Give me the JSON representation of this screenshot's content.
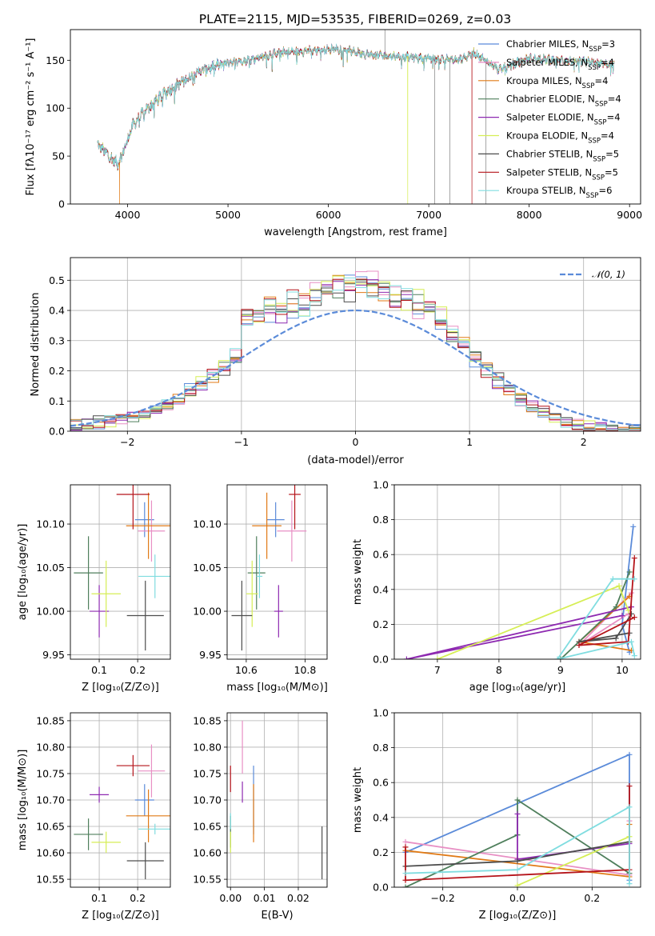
{
  "title": "PLATE=2115, MJD=53535, FIBERID=0269, z=0.03",
  "colors": {
    "s0": "#5b8bd9",
    "s1": "#e88fc4",
    "s2": "#e07a16",
    "s3": "#4f7f5c",
    "s4": "#8e2ab1",
    "s5": "#d6ee55",
    "s6": "#4d4d4d",
    "s7": "#b5141a",
    "s8": "#80dde0",
    "data": "#7f7f7f"
  },
  "chart_data": [
    {
      "id": "spectrum",
      "type": "line",
      "xlabel": "wavelength [Angstrom, rest frame]",
      "ylabel": "Flux [f_λ 10^-17 erg cm^-2 s^-1 A^-1]",
      "xlim": [
        3430,
        9110
      ],
      "ylim": [
        0,
        182
      ],
      "xticks": [
        4000,
        5000,
        6000,
        7000,
        8000,
        9000
      ],
      "yticks": [
        0,
        50,
        100,
        150
      ],
      "grid": false,
      "legend_placement": "upper right",
      "legend": [
        {
          "label": "Chabrier MILES, N",
          "sub": "SSP",
          "suffix": "=3"
        },
        {
          "label": "Salpeter MILES, N",
          "sub": "SSP",
          "suffix": "=4"
        },
        {
          "label": "Kroupa MILES, N",
          "sub": "SSP",
          "suffix": "=4"
        },
        {
          "label": "Chabrier ELODIE, N",
          "sub": "SSP",
          "suffix": "=4"
        },
        {
          "label": "Salpeter ELODIE, N",
          "sub": "SSP",
          "suffix": "=4"
        },
        {
          "label": "Kroupa ELODIE, N",
          "sub": "SSP",
          "suffix": "=4"
        },
        {
          "label": "Chabrier STELIB, N",
          "sub": "SSP",
          "suffix": "=5"
        },
        {
          "label": "Salpeter STELIB, N",
          "sub": "SSP",
          "suffix": "=5"
        },
        {
          "label": "Kroupa STELIB, N",
          "sub": "SSP",
          "suffix": "=6"
        }
      ],
      "continuum_knots": [
        [
          3700,
          62
        ],
        [
          3900,
          42
        ],
        [
          3960,
          55
        ],
        [
          4050,
          82
        ],
        [
          4200,
          100
        ],
        [
          4400,
          118
        ],
        [
          4700,
          138
        ],
        [
          5000,
          148
        ],
        [
          5200,
          150
        ],
        [
          5500,
          158
        ],
        [
          5800,
          160
        ],
        [
          6100,
          162
        ],
        [
          6400,
          156
        ],
        [
          6700,
          154
        ],
        [
          7000,
          152
        ],
        [
          7300,
          150
        ],
        [
          7450,
          158
        ],
        [
          7700,
          140
        ],
        [
          8000,
          152
        ],
        [
          8300,
          150
        ],
        [
          8600,
          148
        ],
        [
          8850,
          145
        ]
      ],
      "dropouts": [
        [
          3920,
          2
        ],
        [
          6790,
          5
        ],
        [
          7430,
          7
        ]
      ],
      "data_spikes": [
        [
          6563,
          182
        ],
        [
          7060,
          0
        ],
        [
          7210,
          0
        ],
        [
          7570,
          0
        ]
      ]
    },
    {
      "id": "residuals",
      "type": "histogram",
      "xlabel": "(data-model)/error",
      "ylabel": "Normed distribution",
      "xlim": [
        -2.5,
        2.5
      ],
      "ylim": [
        0,
        0.575
      ],
      "xticks": [
        -2,
        -1,
        0,
        1,
        2
      ],
      "yticks": [
        0.0,
        0.1,
        0.2,
        0.3,
        0.4,
        0.5
      ],
      "grid": true,
      "reference_curve": {
        "label": "𝒩(0, 1)",
        "type": "dashed",
        "mean": 0,
        "sigma": 1
      },
      "bin_width": 0.1,
      "bins_start": -2.5
    },
    {
      "id": "age_vs_Z",
      "type": "errorbar",
      "xlabel": "Z [log10(Z/Z⊙)]",
      "ylabel": "age [log10(age/yr)]",
      "xlim": [
        0.025,
        0.285
      ],
      "ylim": [
        9.945,
        10.145
      ],
      "xticks": [
        0.1,
        0.2
      ],
      "yticks": [
        9.95,
        10.0,
        10.05,
        10.1
      ],
      "points": [
        {
          "s": 0,
          "x": 0.218,
          "y": 10.105,
          "xe": 0.025,
          "ye": 0.02
        },
        {
          "s": 1,
          "x": 0.236,
          "y": 10.092,
          "xe": 0.035,
          "ye": 0.035
        },
        {
          "s": 2,
          "x": 0.228,
          "y": 10.098,
          "xe": 0.058,
          "ye": 0.038
        },
        {
          "s": 3,
          "x": 0.072,
          "y": 10.044,
          "xe": 0.038,
          "ye": 0.042
        },
        {
          "s": 4,
          "x": 0.1,
          "y": 10.0,
          "xe": 0.025,
          "ye": 0.03
        },
        {
          "s": 5,
          "x": 0.118,
          "y": 10.02,
          "xe": 0.038,
          "ye": 0.038
        },
        {
          "s": 6,
          "x": 0.22,
          "y": 9.995,
          "xe": 0.048,
          "ye": 0.04
        },
        {
          "s": 7,
          "x": 0.188,
          "y": 10.134,
          "xe": 0.043,
          "ye": 0.04
        },
        {
          "s": 8,
          "x": 0.245,
          "y": 10.04,
          "xe": 0.043,
          "ye": 0.025
        }
      ]
    },
    {
      "id": "age_vs_mass",
      "type": "errorbar",
      "xlabel": "mass [log10(M/M⊙)]",
      "xlim": [
        10.535,
        10.875
      ],
      "ylim": [
        9.945,
        10.145
      ],
      "xticks": [
        10.6,
        10.8
      ],
      "yticks": [
        9.95,
        10.0,
        10.05,
        10.1
      ],
      "points": [
        {
          "s": 0,
          "x": 10.7,
          "y": 10.105,
          "xe": 0.03,
          "ye": 0.02
        },
        {
          "s": 1,
          "x": 10.755,
          "y": 10.092,
          "xe": 0.05,
          "ye": 0.035
        },
        {
          "s": 2,
          "x": 10.67,
          "y": 10.098,
          "xe": 0.05,
          "ye": 0.038
        },
        {
          "s": 3,
          "x": 10.635,
          "y": 10.044,
          "xe": 0.03,
          "ye": 0.042
        },
        {
          "s": 4,
          "x": 10.71,
          "y": 10.0,
          "xe": 0.015,
          "ye": 0.03
        },
        {
          "s": 5,
          "x": 10.62,
          "y": 10.02,
          "xe": 0.02,
          "ye": 0.038
        },
        {
          "s": 6,
          "x": 10.585,
          "y": 9.995,
          "xe": 0.035,
          "ye": 0.04
        },
        {
          "s": 7,
          "x": 10.765,
          "y": 10.134,
          "xe": 0.02,
          "ye": 0.04
        },
        {
          "s": 8,
          "x": 10.645,
          "y": 10.04,
          "xe": 0.01,
          "ye": 0.025
        }
      ]
    },
    {
      "id": "weight_vs_age",
      "type": "line",
      "xlabel": "age [log10(age/yr)]",
      "ylabel": "mass weight",
      "xlim": [
        6.3,
        10.3
      ],
      "ylim": [
        0,
        1.0
      ],
      "xticks": [
        7,
        8,
        9,
        10
      ],
      "yticks": [
        0.0,
        0.2,
        0.4,
        0.6,
        0.8,
        1.0
      ],
      "series": [
        {
          "s": 0,
          "pts": [
            [
              10.18,
              0.76
            ],
            [
              10.0,
              0.2
            ],
            [
              10.12,
              0.04
            ]
          ]
        },
        {
          "s": 1,
          "pts": [
            [
              10.15,
              0.38
            ],
            [
              9.3,
              0.08
            ],
            [
              10.1,
              0.26
            ]
          ]
        },
        {
          "s": 2,
          "pts": [
            [
              10.12,
              0.36
            ],
            [
              9.3,
              0.1
            ],
            [
              10.15,
              0.05
            ]
          ]
        },
        {
          "s": 3,
          "pts": [
            [
              10.12,
              0.5
            ],
            [
              9.9,
              0.3
            ],
            [
              9.0,
              0.0
            ]
          ]
        },
        {
          "s": 4,
          "pts": [
            [
              10.0,
              0.25
            ],
            [
              6.5,
              0.0
            ],
            [
              10.15,
              0.3
            ]
          ]
        },
        {
          "s": 5,
          "pts": [
            [
              7.0,
              0.0
            ],
            [
              9.95,
              0.42
            ],
            [
              10.1,
              0.28
            ]
          ]
        },
        {
          "s": 6,
          "pts": [
            [
              10.15,
              0.26
            ],
            [
              9.9,
              0.12
            ],
            [
              9.3,
              0.1
            ],
            [
              10.12,
              0.15
            ]
          ]
        },
        {
          "s": 7,
          "pts": [
            [
              10.2,
              0.58
            ],
            [
              10.1,
              0.1
            ],
            [
              9.3,
              0.08
            ],
            [
              10.2,
              0.24
            ]
          ]
        },
        {
          "s": 8,
          "pts": [
            [
              10.2,
              0.46
            ],
            [
              9.85,
              0.46
            ],
            [
              8.95,
              0.0
            ],
            [
              10.15,
              0.1
            ],
            [
              10.2,
              0.02
            ]
          ]
        }
      ]
    },
    {
      "id": "mass_vs_Z",
      "type": "errorbar",
      "xlabel": "Z [log10(Z/Z⊙)]",
      "ylabel": "mass [log10(M/M⊙)]",
      "xlim": [
        0.025,
        0.285
      ],
      "ylim": [
        10.535,
        10.865
      ],
      "xticks": [
        0.1,
        0.2
      ],
      "yticks": [
        10.55,
        10.6,
        10.65,
        10.7,
        10.75,
        10.8,
        10.85
      ],
      "points": [
        {
          "s": 0,
          "x": 0.218,
          "y": 10.7,
          "xe": 0.025,
          "ye": 0.03
        },
        {
          "s": 1,
          "x": 0.236,
          "y": 10.755,
          "xe": 0.035,
          "ye": 0.05
        },
        {
          "s": 2,
          "x": 0.228,
          "y": 10.67,
          "xe": 0.058,
          "ye": 0.05
        },
        {
          "s": 3,
          "x": 0.072,
          "y": 10.635,
          "xe": 0.038,
          "ye": 0.03
        },
        {
          "s": 4,
          "x": 0.1,
          "y": 10.71,
          "xe": 0.025,
          "ye": 0.015
        },
        {
          "s": 5,
          "x": 0.118,
          "y": 10.62,
          "xe": 0.038,
          "ye": 0.02
        },
        {
          "s": 6,
          "x": 0.22,
          "y": 10.585,
          "xe": 0.048,
          "ye": 0.035
        },
        {
          "s": 7,
          "x": 0.188,
          "y": 10.765,
          "xe": 0.043,
          "ye": 0.02
        },
        {
          "s": 8,
          "x": 0.245,
          "y": 10.645,
          "xe": 0.043,
          "ye": 0.01
        }
      ]
    },
    {
      "id": "mass_vs_EBV",
      "type": "errorbar",
      "xlabel": "E(B-V)",
      "xlim": [
        -0.001,
        0.0285
      ],
      "ylim": [
        10.535,
        10.865
      ],
      "xticks": [
        0.0,
        0.01,
        0.02
      ],
      "yticks": [
        10.55,
        10.6,
        10.65,
        10.7,
        10.75,
        10.8,
        10.85
      ],
      "points": [
        {
          "s": 0,
          "x": 0.0068,
          "y": 10.7,
          "xe": 0,
          "ye": 0.065
        },
        {
          "s": 1,
          "x": 0.0035,
          "y": 10.8,
          "xe": 0,
          "ye": 0.05
        },
        {
          "s": 2,
          "x": 0.0068,
          "y": 10.675,
          "xe": 0,
          "ye": 0.055
        },
        {
          "s": 3,
          "x": 0.0,
          "y": 10.64,
          "xe": 0,
          "ye": 0.03
        },
        {
          "s": 4,
          "x": 0.0035,
          "y": 10.715,
          "xe": 0,
          "ye": 0.02
        },
        {
          "s": 5,
          "x": 0.0,
          "y": 10.62,
          "xe": 0,
          "ye": 0.02
        },
        {
          "s": 6,
          "x": 0.027,
          "y": 10.6,
          "xe": 0,
          "ye": 0.05
        },
        {
          "s": 7,
          "x": 0.0,
          "y": 10.74,
          "xe": 0,
          "ye": 0.025
        },
        {
          "s": 8,
          "x": 0.0,
          "y": 10.66,
          "xe": 0,
          "ye": 0.015
        }
      ]
    },
    {
      "id": "weight_vs_Z",
      "type": "line",
      "xlabel": "Z [log10(Z/Z⊙)]",
      "ylabel": "mass weight",
      "xlim": [
        -0.33,
        0.33
      ],
      "ylim": [
        0,
        1.0
      ],
      "xticks": [
        -0.2,
        0.0,
        0.2
      ],
      "yticks": [
        0.0,
        0.2,
        0.4,
        0.6,
        0.8,
        1.0
      ],
      "series": [
        {
          "s": 0,
          "pts": [
            [
              -0.3,
              0.2
            ],
            [
              0.3,
              0.76
            ],
            [
              0.3,
              0.04
            ]
          ]
        },
        {
          "s": 1,
          "pts": [
            [
              -0.3,
              0.26
            ],
            [
              0.3,
              0.07
            ],
            [
              0.3,
              0.38
            ]
          ]
        },
        {
          "s": 2,
          "pts": [
            [
              -0.3,
              0.21
            ],
            [
              0.3,
              0.06
            ],
            [
              0.3,
              0.36
            ]
          ]
        },
        {
          "s": 3,
          "pts": [
            [
              -0.3,
              0.0
            ],
            [
              0.0,
              0.3
            ],
            [
              0.0,
              0.5
            ],
            [
              0.3,
              0.08
            ]
          ]
        },
        {
          "s": 4,
          "pts": [
            [
              0.0,
              0.42
            ],
            [
              0.0,
              0.16
            ],
            [
              0.3,
              0.25
            ]
          ]
        },
        {
          "s": 5,
          "pts": [
            [
              0.0,
              0.01
            ],
            [
              0.3,
              0.29
            ],
            [
              0.3,
              0.26
            ]
          ]
        },
        {
          "s": 6,
          "pts": [
            [
              -0.3,
              0.12
            ],
            [
              0.0,
              0.15
            ],
            [
              0.3,
              0.26
            ]
          ]
        },
        {
          "s": 7,
          "pts": [
            [
              -0.3,
              0.23
            ],
            [
              -0.3,
              0.04
            ],
            [
              0.3,
              0.1
            ],
            [
              0.3,
              0.58
            ]
          ]
        },
        {
          "s": 8,
          "pts": [
            [
              -0.3,
              0.08
            ],
            [
              0.0,
              0.1
            ],
            [
              0.3,
              0.46
            ],
            [
              0.3,
              0.02
            ]
          ]
        }
      ]
    }
  ]
}
